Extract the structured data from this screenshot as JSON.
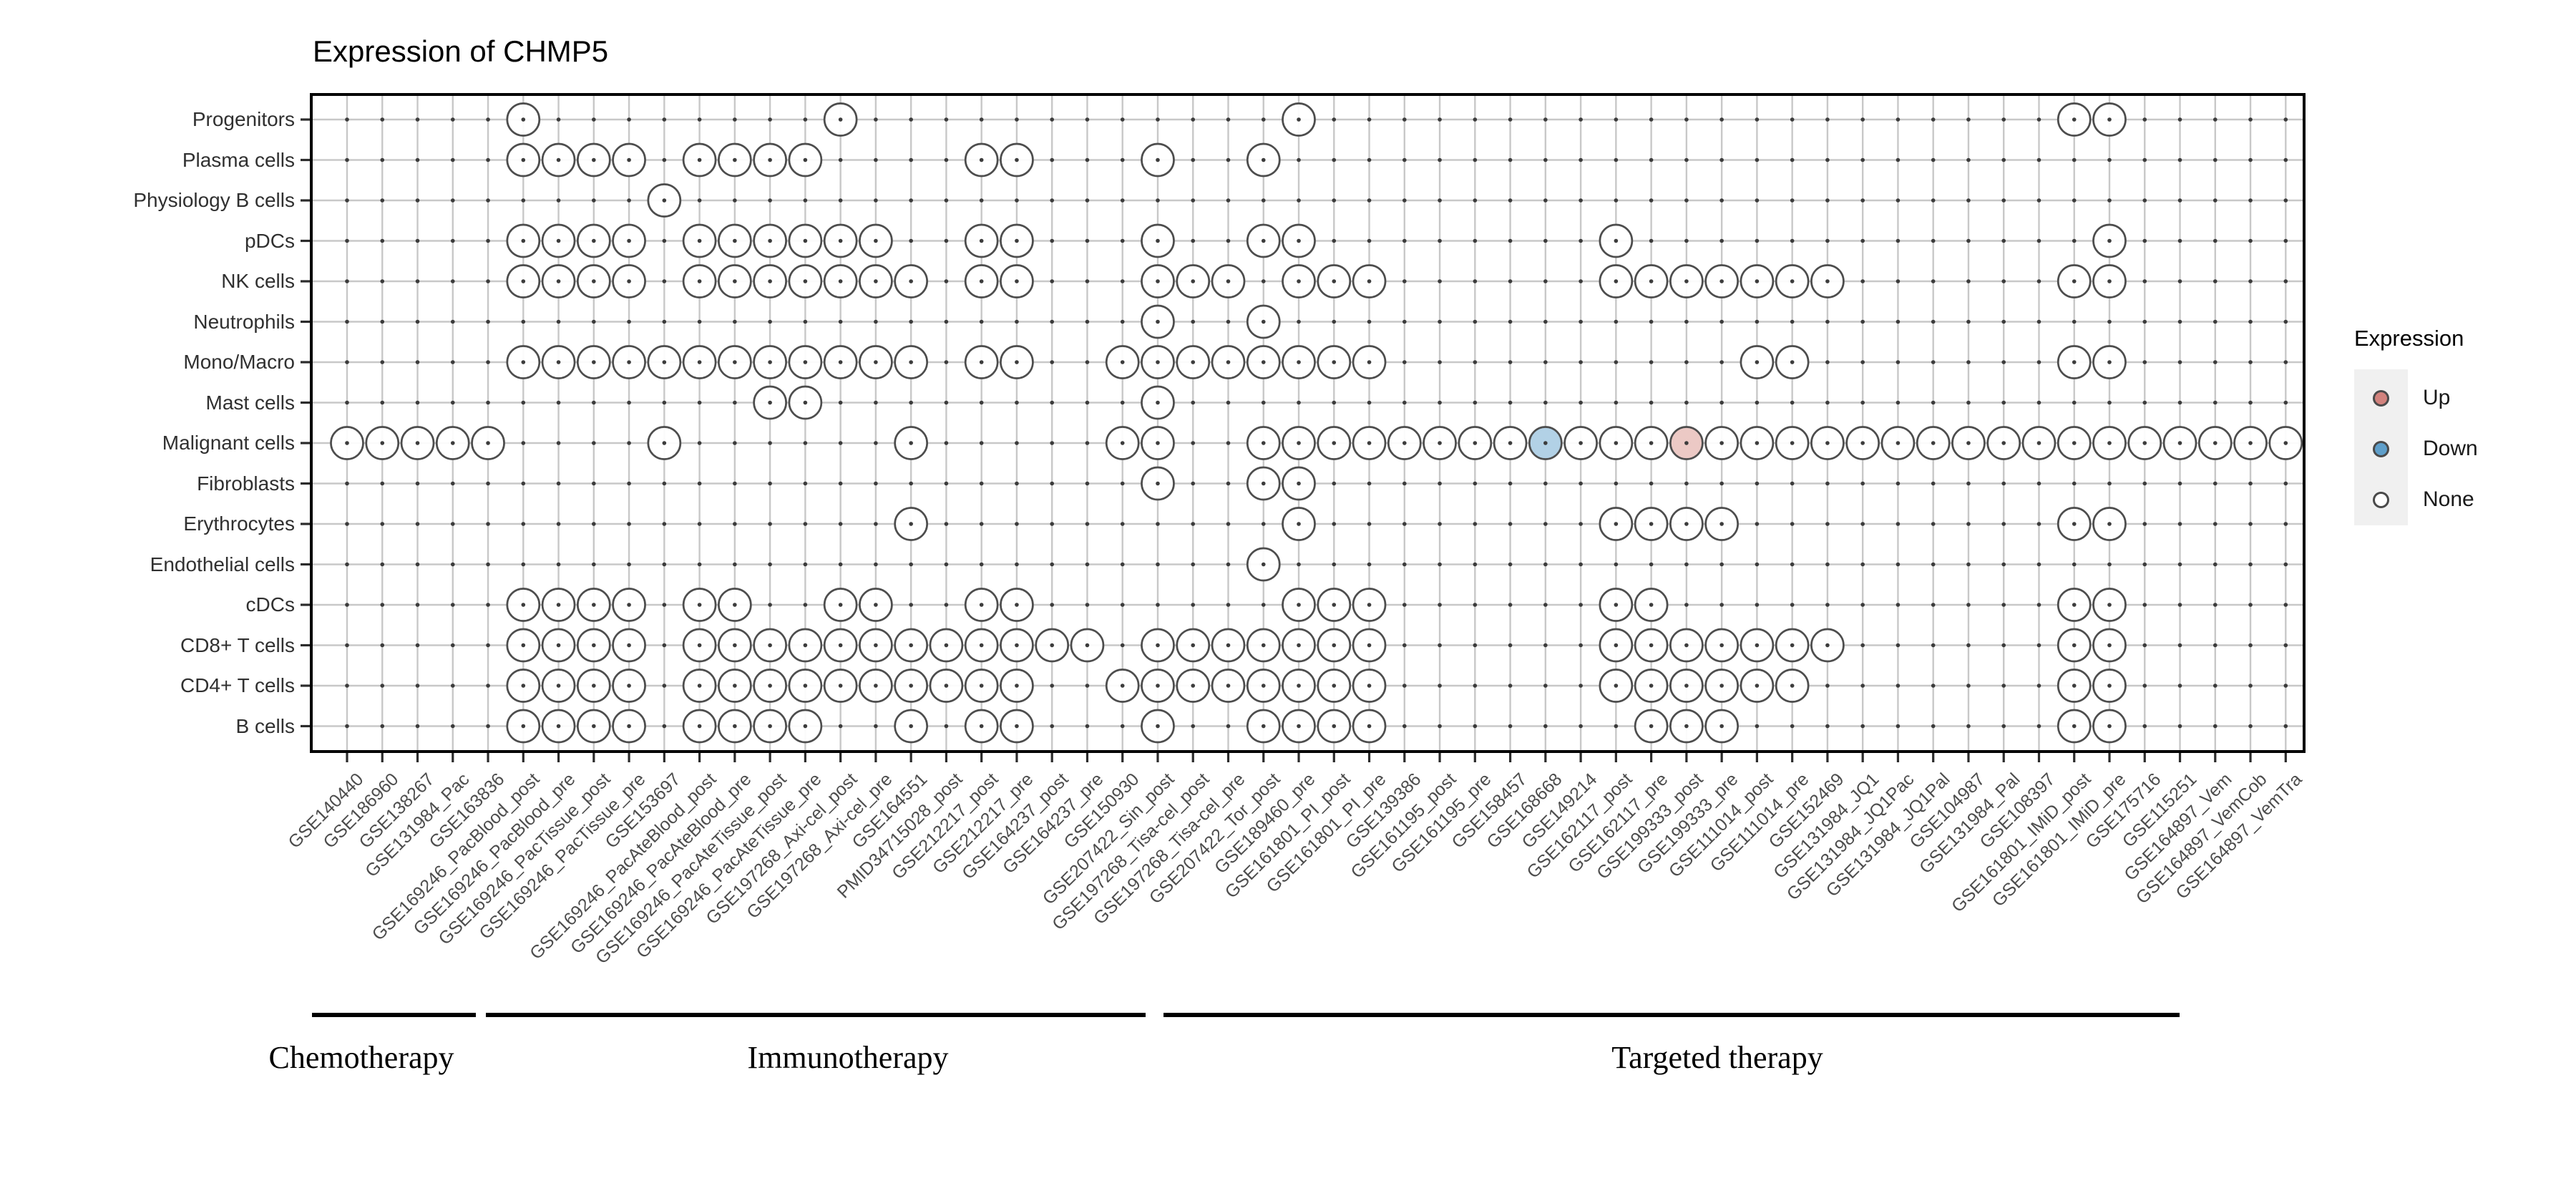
{
  "title": "Expression of CHMP5",
  "legend": {
    "title": "Expression",
    "items": [
      {
        "label": "Up",
        "color": "#d2827d"
      },
      {
        "label": "Down",
        "color": "#5f9fca"
      },
      {
        "label": "None",
        "color": "#ffffff"
      }
    ]
  },
  "colors": {
    "up": "#d2827d",
    "down": "#5f9fca",
    "none": "#ffffff",
    "up_fill": "#ecc9c5",
    "down_fill": "#b2d1e6",
    "circle_stroke": "#4d4d4d",
    "grid_line": "#c8c8c8",
    "intersection_dot": "#3c3c3c",
    "panel_border": "#000000",
    "legend_key_bg": "#f0f0f0"
  },
  "chart_data": {
    "type": "dot-matrix",
    "title": "Expression of CHMP5",
    "x_tick_angle": 45,
    "grid": true,
    "legend_position": "right",
    "x_categories": [
      "GSE140440",
      "GSE186960",
      "GSE138267",
      "GSE131984_Pac",
      "GSE163836",
      "GSE169246_PacBlood_post",
      "GSE169246_PacBlood_pre",
      "GSE169246_PacTissue_post",
      "GSE169246_PacTissue_pre",
      "GSE153697",
      "GSE169246_PacAteBlood_post",
      "GSE169246_PacAteBlood_pre",
      "GSE169246_PacAteTissue_post",
      "GSE169246_PacAteTissue_pre",
      "GSE197268_Axi-cel_post",
      "GSE197268_Axi-cel_pre",
      "GSE164551",
      "PMID34715028_post",
      "GSE212217_post",
      "GSE212217_pre",
      "GSE164237_post",
      "GSE164237_pre",
      "GSE150930",
      "GSE207422_Sin_post",
      "GSE197268_Tisa-cel_post",
      "GSE197268_Tisa-cel_pre",
      "GSE207422_Tor_post",
      "GSE189460_pre",
      "GSE161801_PI_post",
      "GSE161801_PI_pre",
      "GSE139386",
      "GSE161195_post",
      "GSE161195_pre",
      "GSE158457",
      "GSE168668",
      "GSE149214",
      "GSE162117_post",
      "GSE162117_pre",
      "GSE199333_post",
      "GSE199333_pre",
      "GSE111014_post",
      "GSE111014_pre",
      "GSE152469",
      "GSE131984_JQ1",
      "GSE131984_JQ1Pac",
      "GSE131984_JQ1Pal",
      "GSE104987",
      "GSE131984_Pal",
      "GSE108397",
      "GSE161801_IMiD_post",
      "GSE161801_IMiD_pre",
      "GSE175716",
      "GSE115251",
      "GSE164897_Vem",
      "GSE164897_VemCob",
      "GSE164897_VemTra"
    ],
    "y_categories": [
      "Progenitors",
      "Plasma cells",
      "Physiology B cells",
      "pDCs",
      "NK cells",
      "Neutrophils",
      "Mono/Macro",
      "Mast cells",
      "Malignant cells",
      "Fibroblasts",
      "Erythrocytes",
      "Endothelial cells",
      "cDCs",
      "CD8+ T cells",
      "CD4+ T cells",
      "B cells"
    ],
    "groups": [
      {
        "label": "Chemotherapy",
        "col_start": 1,
        "col_end": 4
      },
      {
        "label": "Immunotherapy",
        "col_start": 5,
        "col_end": 23
      },
      {
        "label": "Targeted therapy",
        "col_start": 24,
        "col_end": 53
      }
    ],
    "rows": [
      {
        "cell_type": "Progenitors",
        "none": [
          6,
          15,
          28,
          50,
          51
        ],
        "up": [],
        "down": []
      },
      {
        "cell_type": "Plasma cells",
        "none": [
          6,
          7,
          8,
          9,
          11,
          12,
          13,
          14,
          19,
          20,
          24,
          27
        ],
        "up": [],
        "down": []
      },
      {
        "cell_type": "Physiology B cells",
        "none": [
          10
        ],
        "up": [],
        "down": []
      },
      {
        "cell_type": "pDCs",
        "none": [
          6,
          7,
          8,
          9,
          11,
          12,
          13,
          14,
          15,
          16,
          19,
          20,
          24,
          27,
          28,
          37,
          51
        ],
        "up": [],
        "down": []
      },
      {
        "cell_type": "NK cells",
        "none": [
          6,
          7,
          8,
          9,
          11,
          12,
          13,
          14,
          15,
          16,
          17,
          19,
          20,
          24,
          25,
          26,
          28,
          29,
          30,
          37,
          38,
          39,
          40,
          41,
          42,
          43,
          50,
          51
        ],
        "up": [],
        "down": []
      },
      {
        "cell_type": "Neutrophils",
        "none": [
          24,
          27
        ],
        "up": [],
        "down": []
      },
      {
        "cell_type": "Mono/Macro",
        "none": [
          6,
          7,
          8,
          9,
          10,
          11,
          12,
          13,
          14,
          15,
          16,
          17,
          19,
          20,
          23,
          24,
          25,
          26,
          27,
          28,
          29,
          30,
          41,
          42,
          50,
          51
        ],
        "up": [],
        "down": []
      },
      {
        "cell_type": "Mast cells",
        "none": [
          13,
          14,
          24
        ],
        "up": [],
        "down": []
      },
      {
        "cell_type": "Malignant cells",
        "none": [
          1,
          2,
          3,
          4,
          5,
          10,
          17,
          23,
          24,
          27,
          28,
          29,
          30,
          31,
          32,
          33,
          34,
          36,
          37,
          38,
          40,
          41,
          42,
          43,
          44,
          45,
          46,
          47,
          48,
          49,
          50,
          51,
          52,
          53,
          54,
          55,
          56
        ],
        "up": [
          39
        ],
        "down": [
          35
        ]
      },
      {
        "cell_type": "Fibroblasts",
        "none": [
          24,
          27,
          28
        ],
        "up": [],
        "down": []
      },
      {
        "cell_type": "Erythrocytes",
        "none": [
          17,
          28,
          37,
          38,
          39,
          40,
          50,
          51
        ],
        "up": [],
        "down": []
      },
      {
        "cell_type": "Endothelial cells",
        "none": [
          27
        ],
        "up": [],
        "down": []
      },
      {
        "cell_type": "cDCs",
        "none": [
          6,
          7,
          8,
          9,
          11,
          12,
          15,
          16,
          19,
          20,
          28,
          29,
          30,
          37,
          38,
          50,
          51
        ],
        "up": [],
        "down": []
      },
      {
        "cell_type": "CD8+ T cells",
        "none": [
          6,
          7,
          8,
          9,
          11,
          12,
          13,
          14,
          15,
          16,
          17,
          18,
          19,
          20,
          21,
          22,
          24,
          25,
          26,
          27,
          28,
          29,
          30,
          37,
          38,
          39,
          40,
          41,
          42,
          43,
          50,
          51
        ],
        "up": [],
        "down": []
      },
      {
        "cell_type": "CD4+ T cells",
        "none": [
          6,
          7,
          8,
          9,
          11,
          12,
          13,
          14,
          15,
          16,
          17,
          18,
          19,
          20,
          23,
          24,
          25,
          26,
          27,
          28,
          29,
          30,
          37,
          38,
          39,
          40,
          41,
          42,
          50,
          51
        ],
        "up": [],
        "down": []
      },
      {
        "cell_type": "B cells",
        "none": [
          6,
          7,
          8,
          9,
          11,
          12,
          13,
          14,
          17,
          19,
          20,
          24,
          27,
          28,
          29,
          30,
          38,
          39,
          40,
          50,
          51
        ],
        "up": [],
        "down": []
      }
    ]
  }
}
